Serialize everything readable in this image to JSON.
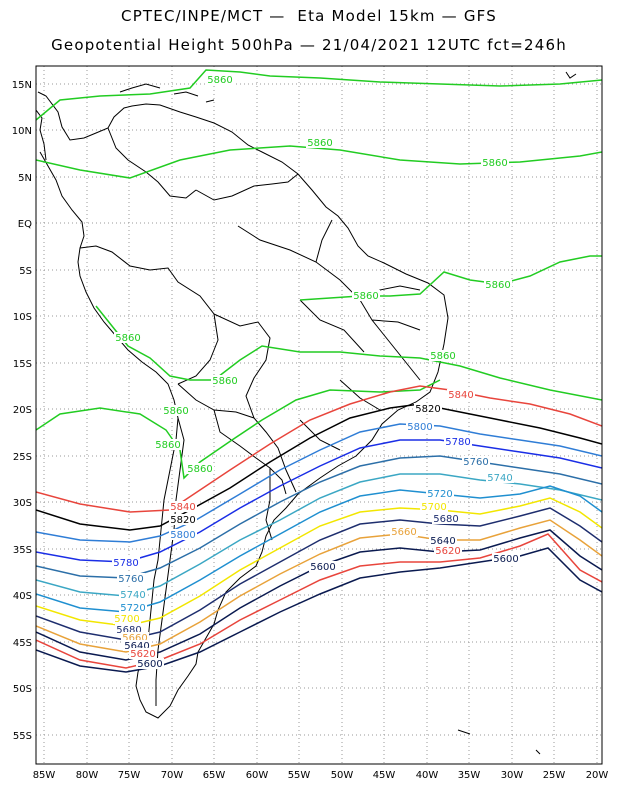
{
  "title_line1": "CPTEC/INPE/MCT —  Eta Model 15km — GFS",
  "title_line2": "Geopotential Height 500hPa — 21/04/2021 12UTC fct=246h",
  "lat_ticks": [
    "15N",
    "10N",
    "5N",
    "EQ",
    "5S",
    "10S",
    "15S",
    "20S",
    "25S",
    "30S",
    "35S",
    "40S",
    "45S",
    "50S",
    "55S"
  ],
  "lon_ticks": [
    "85W",
    "80W",
    "75W",
    "70W",
    "65W",
    "60W",
    "55W",
    "50W",
    "45W",
    "40W",
    "35W",
    "30W",
    "25W",
    "20W"
  ],
  "colors": {
    "c5860": "#22cc22",
    "c5840": "#e8453c",
    "c5820": "#000000",
    "c5800": "#2f7dd6",
    "c5780": "#1a2ee6",
    "c5760": "#2c6fa8",
    "c5740": "#3ba7c4",
    "c5720": "#1f8fd0",
    "c5700": "#f2e600",
    "c5680": "#1e2e6e",
    "c5660": "#e8a23a",
    "c5640": "#0a1a50",
    "c5620": "#e8453c",
    "c5600": "#0a1a50",
    "map_lines": "#000000",
    "grid": "#9a9a9a"
  },
  "contour_labels": [
    {
      "text": "5860",
      "color": "c5860"
    },
    {
      "text": "5860",
      "color": "c5860"
    },
    {
      "text": "5860",
      "color": "c5860"
    },
    {
      "text": "5860",
      "color": "c5860"
    },
    {
      "text": "5860",
      "color": "c5860"
    },
    {
      "text": "5860",
      "color": "c5860"
    },
    {
      "text": "5860",
      "color": "c5860"
    },
    {
      "text": "5860",
      "color": "c5860"
    },
    {
      "text": "5860",
      "color": "c5860"
    },
    {
      "text": "5860",
      "color": "c5860"
    },
    {
      "text": "5860",
      "color": "c5860"
    },
    {
      "text": "5840",
      "color": "c5840"
    },
    {
      "text": "5840",
      "color": "c5840"
    },
    {
      "text": "5820",
      "color": "c5820"
    },
    {
      "text": "5820",
      "color": "c5820"
    },
    {
      "text": "5800",
      "color": "c5800"
    },
    {
      "text": "5800",
      "color": "c5800"
    },
    {
      "text": "5780",
      "color": "c5780"
    },
    {
      "text": "5780",
      "color": "c5780"
    },
    {
      "text": "5760",
      "color": "c5760"
    },
    {
      "text": "5760",
      "color": "c5760"
    },
    {
      "text": "5740",
      "color": "c5740"
    },
    {
      "text": "5740",
      "color": "c5740"
    },
    {
      "text": "5720",
      "color": "c5720"
    },
    {
      "text": "5720",
      "color": "c5720"
    },
    {
      "text": "5700",
      "color": "c5700"
    },
    {
      "text": "5700",
      "color": "c5700"
    },
    {
      "text": "5680",
      "color": "c5680"
    },
    {
      "text": "5680",
      "color": "c5680"
    },
    {
      "text": "5660",
      "color": "c5660"
    },
    {
      "text": "5660",
      "color": "c5660"
    },
    {
      "text": "5640",
      "color": "c5640"
    },
    {
      "text": "5640",
      "color": "c5640"
    },
    {
      "text": "5620",
      "color": "c5620"
    },
    {
      "text": "5620",
      "color": "c5620"
    },
    {
      "text": "5600",
      "color": "c5600"
    },
    {
      "text": "5600",
      "color": "c5600"
    },
    {
      "text": "5600",
      "color": "c5600"
    }
  ]
}
